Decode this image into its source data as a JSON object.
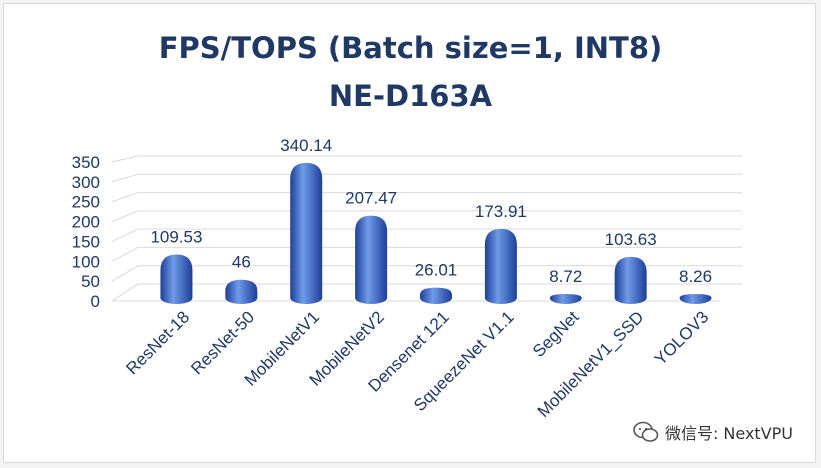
{
  "watermark": {
    "text": "微信号: NextVPU",
    "icon": "wechat-icon"
  },
  "colors": {
    "title": "#1f3864",
    "bar_light": "#6f9be8",
    "bar_mid": "#3a6fd6",
    "bar_dark": "#1d3f99",
    "grid": "#d9d9d9"
  },
  "chart_data": {
    "type": "bar",
    "title": "FPS/TOPS (Batch size=1, INT8)",
    "subtitle": "NE-D163A",
    "xlabel": "",
    "ylabel": "",
    "categories": [
      "ResNet-18",
      "ResNet-50",
      "MobileNetV1",
      "MobileNetV2",
      "Densenet 121",
      "SqueezeNet V1.1",
      "SegNet",
      "MobileNetV1_SSD",
      "YOLOV3"
    ],
    "values": [
      109.53,
      46,
      340.14,
      207.47,
      26.01,
      173.91,
      8.72,
      103.63,
      8.26
    ],
    "value_labels": [
      "109.53",
      "46",
      "340.14",
      "207.47",
      "26.01",
      "173.91",
      "8.72",
      "103.63",
      "8.26"
    ],
    "yticks": [
      "0",
      "50",
      "100",
      "150",
      "200",
      "250",
      "300",
      "350"
    ],
    "ylim": [
      0,
      350
    ],
    "grid": true,
    "legend": "none",
    "style": "3d-cylinder"
  }
}
